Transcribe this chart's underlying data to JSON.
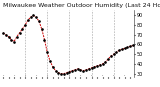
{
  "title": "Milwaukee Weather Outdoor Humidity (Last 24 Hours)",
  "y_values": [
    72,
    70,
    68,
    65,
    63,
    68,
    72,
    76,
    80,
    85,
    88,
    90,
    88,
    84,
    76,
    65,
    52,
    43,
    37,
    33,
    31,
    30,
    30,
    31,
    32,
    33,
    34,
    35,
    34,
    33,
    34,
    35,
    36,
    37,
    38,
    39,
    40,
    42,
    45,
    48,
    50,
    52,
    54,
    55,
    56,
    57,
    58,
    59
  ],
  "ylim": [
    27,
    95
  ],
  "yticks": [
    30,
    40,
    50,
    60,
    70,
    80,
    90
  ],
  "ytick_labels": [
    "30",
    "40",
    "50",
    "60",
    "70",
    "80",
    "90"
  ],
  "line_color": "#cc0000",
  "marker_color": "#000000",
  "bg_color": "#ffffff",
  "plot_bg": "#ffffff",
  "grid_color": "#999999",
  "title_fontsize": 4.5,
  "tick_fontsize": 3.5,
  "vgrid_positions": [
    8,
    16,
    24,
    32,
    40
  ],
  "num_xticks": 24
}
